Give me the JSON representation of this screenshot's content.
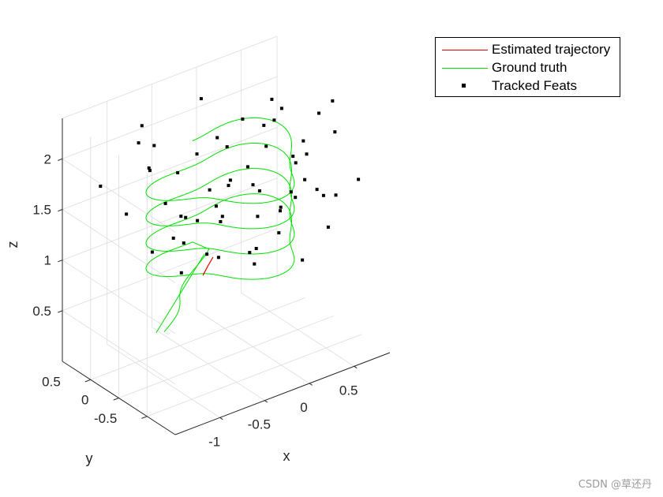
{
  "chart_data": {
    "type": "scatter",
    "projection": "3d",
    "xlabel": "x",
    "ylabel": "y",
    "zlabel": "z",
    "xlim": [
      -1.5,
      0.9
    ],
    "ylim": [
      -1.0,
      1.0
    ],
    "zlim": [
      0.0,
      2.4
    ],
    "x_ticks": [
      -1,
      -0.5,
      0,
      0.5
    ],
    "x_tick_labels": [
      "-1",
      "-0.5",
      "0",
      "0.5"
    ],
    "y_ticks": [
      -0.5,
      0,
      0.5
    ],
    "y_tick_labels": [
      "-0.5",
      "0",
      "0.5"
    ],
    "z_ticks": [
      0.5,
      1,
      1.5,
      2
    ],
    "z_tick_labels": [
      "0.5",
      "1",
      "1.5",
      "2"
    ],
    "grid": true,
    "legend_position": "top-right",
    "legend": [
      {
        "label": "Estimated trajectory",
        "color": "#e00000",
        "marker": "line"
      },
      {
        "label": "Ground truth",
        "color": "#00e000",
        "marker": "line"
      },
      {
        "label": "Tracked Feats",
        "color": "#000000",
        "marker": "square"
      }
    ],
    "series": [
      {
        "name": "Ground truth",
        "kind": "helix",
        "color": "#00e000",
        "center": [
          -0.25,
          0.0
        ],
        "radius": 0.8,
        "start_point": [
          -0.52,
          0.75,
          0.05
        ],
        "helix_start": [
          -0.3,
          0.4,
          0.9
        ],
        "z_range": [
          0.95,
          1.95
        ],
        "turns": 4
      },
      {
        "name": "Estimated trajectory",
        "color": "#e00000",
        "points": [
          [
            -0.37,
            0.3,
            0.72
          ],
          [
            -0.35,
            0.25,
            0.82
          ],
          [
            -0.32,
            0.2,
            0.92
          ]
        ]
      },
      {
        "name": "Tracked Feats",
        "color": "#000000",
        "points": [
          [
            -0.9,
            0.6,
            2.1
          ],
          [
            -0.2,
            0.6,
            2.3
          ],
          [
            0.4,
            0.3,
            2.2
          ],
          [
            0.7,
            -0.3,
            2.3
          ],
          [
            0.1,
            -0.6,
            2.0
          ],
          [
            -0.8,
            -0.5,
            2.0
          ],
          [
            -1.1,
            0.1,
            2.1
          ],
          [
            -0.4,
            0.0,
            2.2
          ],
          [
            0.2,
            0.5,
            2.0
          ],
          [
            -0.6,
            0.8,
            1.9
          ],
          [
            0.5,
            0.6,
            1.8
          ],
          [
            -0.2,
            -0.8,
            1.7
          ],
          [
            -1.2,
            0.8,
            1.7
          ],
          [
            0.8,
            -0.6,
            1.6
          ],
          [
            -0.9,
            -0.2,
            1.4
          ],
          [
            0.3,
            -0.2,
            1.5
          ],
          [
            -0.5,
            0.4,
            1.3
          ],
          [
            0.6,
            0.2,
            1.2
          ],
          [
            -0.3,
            -0.5,
            1.1
          ],
          [
            0.1,
            0.7,
            1.0
          ],
          [
            -0.7,
            0.3,
            1.2
          ],
          [
            0.4,
            -0.7,
            1.3
          ],
          [
            -1.0,
            -0.6,
            1.8
          ],
          [
            0.0,
            0.0,
            1.6
          ],
          [
            -0.1,
            0.3,
            1.9
          ],
          [
            0.6,
            -0.5,
            2.1
          ],
          [
            -0.6,
            -0.3,
            1.7
          ],
          [
            0.2,
            0.2,
            1.4
          ],
          [
            -0.4,
            0.7,
            1.6
          ],
          [
            0.7,
            0.4,
            1.5
          ],
          [
            -0.8,
            0.0,
            1.0
          ],
          [
            0.3,
            -0.4,
            0.9
          ],
          [
            -0.2,
            0.5,
            0.8
          ],
          [
            0.5,
            -0.1,
            1.9
          ],
          [
            -1.1,
            0.5,
            1.5
          ],
          [
            0.8,
            0.1,
            2.0
          ],
          [
            -0.5,
            -0.7,
            2.2
          ],
          [
            0.1,
            -0.3,
            1.2
          ],
          [
            -0.3,
            0.1,
            1.3
          ],
          [
            0.4,
            0.4,
            1.7
          ],
          [
            -0.6,
            0.6,
            1.4
          ],
          [
            0.6,
            -0.3,
            1.4
          ],
          [
            -0.9,
            0.4,
            1.9
          ],
          [
            0.2,
            -0.6,
            1.8
          ],
          [
            -0.1,
            -0.1,
            1.0
          ],
          [
            0.7,
            0.6,
            1.9
          ],
          [
            -0.7,
            -0.5,
            1.3
          ],
          [
            0.0,
            0.4,
            1.5
          ],
          [
            -0.4,
            -0.2,
            1.8
          ],
          [
            0.5,
            0.3,
            1.1
          ],
          [
            -1.0,
            0.2,
            1.2
          ],
          [
            0.3,
            0.1,
            2.1
          ],
          [
            -0.2,
            -0.4,
            1.5
          ],
          [
            0.8,
            -0.2,
            1.3
          ],
          [
            -0.8,
            0.7,
            2.2
          ],
          [
            0.1,
            0.1,
            0.9
          ],
          [
            -0.5,
            0.2,
            2.0
          ],
          [
            0.4,
            -0.5,
            1.6
          ],
          [
            -0.3,
            0.8,
            1.1
          ],
          [
            0.6,
            0.0,
            1.7
          ]
        ]
      }
    ]
  },
  "watermark": "CSDN @草还丹"
}
